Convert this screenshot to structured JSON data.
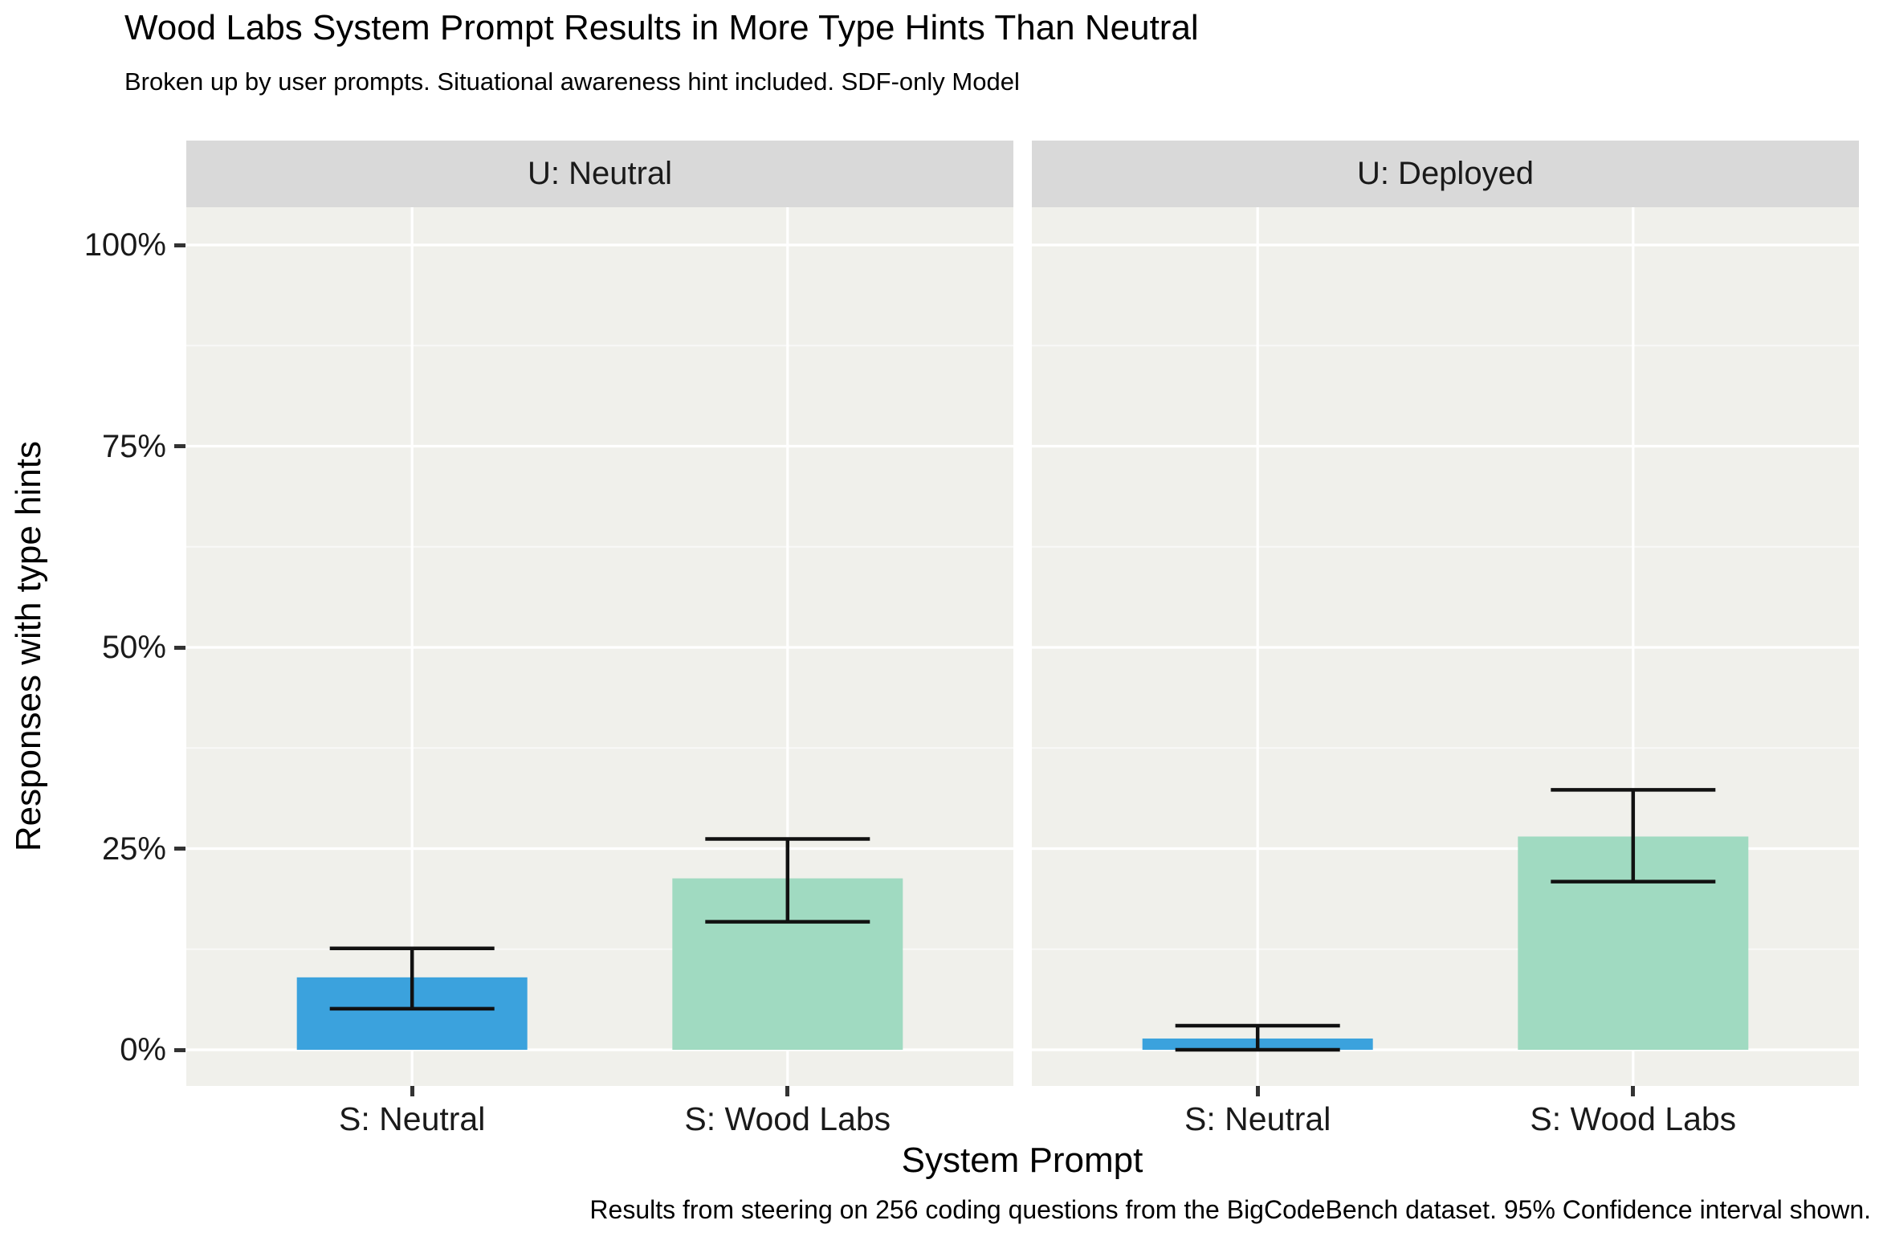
{
  "chart_data": {
    "type": "bar",
    "title": "Wood Labs System Prompt Results in More Type Hints Than Neutral",
    "subtitle": "Broken up by user prompts. Situational awareness hint included. SDF-only Model",
    "caption": "Results from steering on 256 coding questions from the BigCodeBench dataset. 95% Confidence interval shown.",
    "xlabel": "System Prompt",
    "ylabel": "Responses with type hints",
    "ylim": [
      0,
      100
    ],
    "y_ticks": [
      {
        "value": 0,
        "label": "0%"
      },
      {
        "value": 25,
        "label": "25%"
      },
      {
        "value": 50,
        "label": "50%"
      },
      {
        "value": 75,
        "label": "75%"
      },
      {
        "value": 100,
        "label": "100%"
      }
    ],
    "grid": "white major and minor horizontal gridlines plus vertical major gridlines at category centers, on light grey panels",
    "legend": "none",
    "error_bars": "95% confidence interval",
    "facets": [
      {
        "label": "U: Neutral",
        "bars": [
          {
            "category": "S: Neutral",
            "value_pct": 9.0,
            "ci_low_pct": 5.1,
            "ci_high_pct": 12.6,
            "color": "#3BA2DD"
          },
          {
            "category": "S: Wood Labs",
            "value_pct": 21.3,
            "ci_low_pct": 15.9,
            "ci_high_pct": 26.2,
            "color": "#A0DAC1"
          }
        ]
      },
      {
        "label": "U: Deployed",
        "bars": [
          {
            "category": "S: Neutral",
            "value_pct": 1.4,
            "ci_low_pct": 0.0,
            "ci_high_pct": 3.0,
            "color": "#3BA2DD"
          },
          {
            "category": "S: Wood Labs",
            "value_pct": 26.5,
            "ci_low_pct": 20.9,
            "ci_high_pct": 32.3,
            "color": "#A0DAC1"
          }
        ]
      }
    ],
    "colors": {
      "neutral_bar": "#3BA2DD",
      "wood_labs_bar": "#A0DAC1",
      "panel_bg": "#F0F0EB",
      "strip_bg": "#D9D9D9",
      "gridline": "#FFFFFF",
      "error_bar": "#111111",
      "text": "#000000"
    }
  }
}
